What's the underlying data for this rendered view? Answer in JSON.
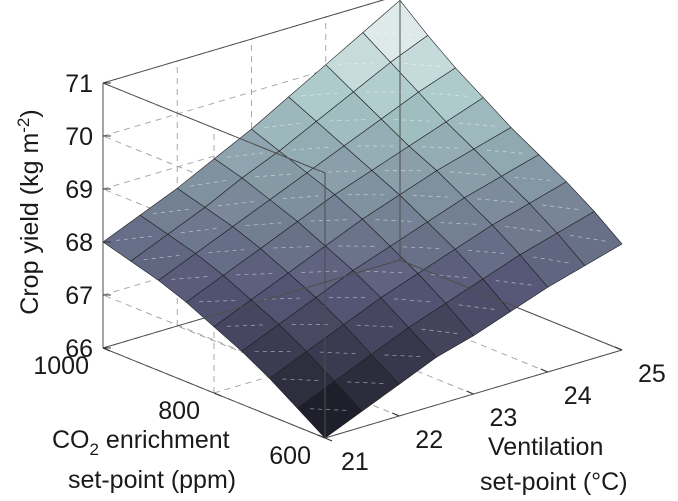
{
  "chart_data": {
    "type": "surface3d",
    "colormap": "bone",
    "x_axis": {
      "label_line1": "Ventilation",
      "label_line2": "set-point (°C)",
      "range": [
        21,
        25
      ],
      "ticks": [
        "21",
        "22",
        "23",
        "24",
        "25"
      ]
    },
    "y_axis": {
      "label_line1_main": "CO",
      "label_line1_sub": "2",
      "label_line1_rest": " enrichment",
      "label_line2": "set-point (ppm)",
      "range": [
        600,
        1000
      ],
      "ticks": [
        "600",
        "800",
        "1000"
      ]
    },
    "z_axis": {
      "label_main": "Crop yield (kg m",
      "label_sup": "-2",
      "label_end": ")",
      "range": [
        66,
        71
      ],
      "ticks": [
        "66",
        "67",
        "68",
        "69",
        "70",
        "71"
      ]
    },
    "surface": {
      "x": [
        21,
        21.5,
        22,
        22.5,
        23,
        23.5,
        24,
        24.5,
        25
      ],
      "y": [
        600,
        650,
        700,
        750,
        800,
        850,
        900,
        950,
        1000
      ],
      "z": [
        [
          66.0,
          66.3,
          66.6,
          66.9,
          67.1,
          67.35,
          67.6,
          67.8,
          68.0
        ],
        [
          66.35,
          66.65,
          66.95,
          67.25,
          67.5,
          67.75,
          68.0,
          68.2,
          68.4
        ],
        [
          66.7,
          67.0,
          67.3,
          67.6,
          67.85,
          68.1,
          68.35,
          68.55,
          68.75
        ],
        [
          67.0,
          67.3,
          67.6,
          67.9,
          68.15,
          68.4,
          68.65,
          68.85,
          69.05
        ],
        [
          67.25,
          67.55,
          67.85,
          68.15,
          68.45,
          68.7,
          68.95,
          69.15,
          69.35
        ],
        [
          67.5,
          67.8,
          68.1,
          68.4,
          68.7,
          68.95,
          69.2,
          69.45,
          69.7
        ],
        [
          67.7,
          68.0,
          68.3,
          68.6,
          68.9,
          69.2,
          69.5,
          69.8,
          70.05
        ],
        [
          67.85,
          68.15,
          68.45,
          68.8,
          69.1,
          69.45,
          69.8,
          70.15,
          70.45
        ],
        [
          68.0,
          68.3,
          68.6,
          68.95,
          69.3,
          69.7,
          70.1,
          70.5,
          70.9
        ]
      ]
    },
    "grid": true
  }
}
